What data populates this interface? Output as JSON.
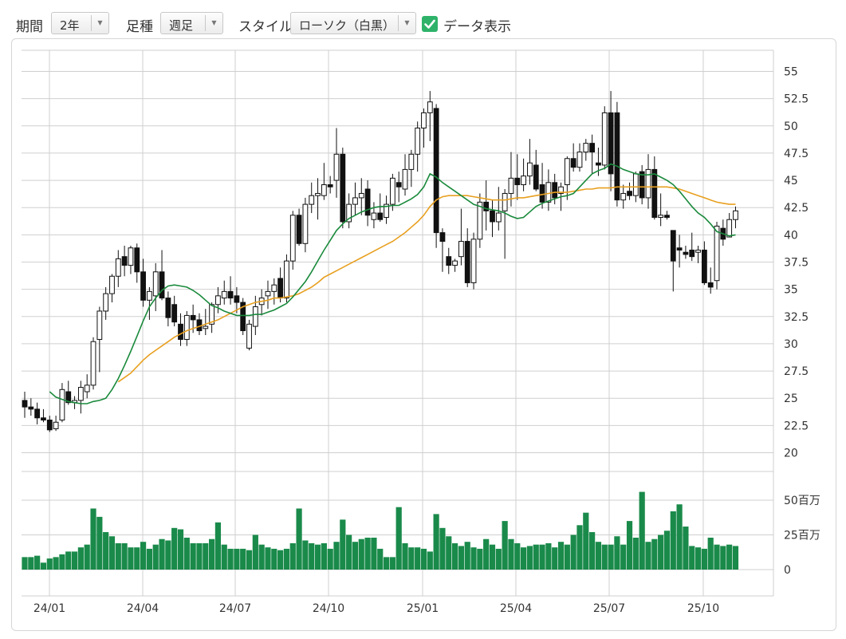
{
  "toolbar": {
    "period_label": "期間",
    "period_value": "2年",
    "interval_label": "足種",
    "interval_value": "週足",
    "style_label": "スタイル",
    "style_value": "ローソク（白黒）",
    "show_data_label": "データ表示",
    "show_data_checked": true
  },
  "chart_data": {
    "type": "candlestick",
    "price_axis": {
      "min": 20,
      "max": 55,
      "ticks": [
        "20",
        "22.5",
        "25",
        "27.5",
        "30",
        "32.5",
        "35",
        "37.5",
        "40",
        "42.5",
        "45",
        "47.5",
        "50",
        "52.5",
        "55"
      ]
    },
    "volume_axis": {
      "unit": "百万",
      "ticks": [
        "0",
        "25百万",
        "50百万"
      ]
    },
    "x_ticks": [
      "24/01",
      "24/04",
      "24/07",
      "24/10",
      "25/01",
      "25/04",
      "25/07",
      "25/10"
    ],
    "grid": true,
    "colors": {
      "up_body": "#ffffff",
      "down_body": "#111111",
      "ma_short": "#1a8a3c",
      "ma_long": "#e8a020",
      "volume": "#1a8a4a",
      "grid": "#cfcfcf"
    },
    "ohlc": [
      [
        24.8,
        25.6,
        23.2,
        24.2
      ],
      [
        24.2,
        25.0,
        23.4,
        24.0
      ],
      [
        24.0,
        24.6,
        22.6,
        23.2
      ],
      [
        23.2,
        24.0,
        22.8,
        23.0
      ],
      [
        23.0,
        23.4,
        21.9,
        22.1
      ],
      [
        22.2,
        23.4,
        22.0,
        22.8
      ],
      [
        23.0,
        26.4,
        22.8,
        25.8
      ],
      [
        25.6,
        26.6,
        24.4,
        24.6
      ],
      [
        24.6,
        25.2,
        24.0,
        24.8
      ],
      [
        24.8,
        26.6,
        23.6,
        26.0
      ],
      [
        25.6,
        27.2,
        25.0,
        26.2
      ],
      [
        26.2,
        30.6,
        25.8,
        30.2
      ],
      [
        30.4,
        33.4,
        27.4,
        33.0
      ],
      [
        33.0,
        35.2,
        32.2,
        34.6
      ],
      [
        34.6,
        36.4,
        33.8,
        36.2
      ],
      [
        36.2,
        38.6,
        35.2,
        37.8
      ],
      [
        38.0,
        39.0,
        36.2,
        37.2
      ],
      [
        37.2,
        39.0,
        36.4,
        38.8
      ],
      [
        38.8,
        39.2,
        35.6,
        36.6
      ],
      [
        36.6,
        37.8,
        33.4,
        34.0
      ],
      [
        34.0,
        35.2,
        32.2,
        34.8
      ],
      [
        34.4,
        37.4,
        33.0,
        36.6
      ],
      [
        36.6,
        38.6,
        34.0,
        34.2
      ],
      [
        34.2,
        34.8,
        31.6,
        32.4
      ],
      [
        33.6,
        34.4,
        31.6,
        32.0
      ],
      [
        31.8,
        32.8,
        29.8,
        30.4
      ],
      [
        30.4,
        33.0,
        29.8,
        32.6
      ],
      [
        32.6,
        33.6,
        31.0,
        32.2
      ],
      [
        32.2,
        32.8,
        30.8,
        31.2
      ],
      [
        31.4,
        33.2,
        30.8,
        31.6
      ],
      [
        31.8,
        33.8,
        31.0,
        33.6
      ],
      [
        33.6,
        35.2,
        32.8,
        34.4
      ],
      [
        34.2,
        35.8,
        33.6,
        34.8
      ],
      [
        34.8,
        36.2,
        33.6,
        34.2
      ],
      [
        34.4,
        35.2,
        32.8,
        33.8
      ],
      [
        33.8,
        34.2,
        30.8,
        31.2
      ],
      [
        29.6,
        32.2,
        29.4,
        31.8
      ],
      [
        31.6,
        34.4,
        30.8,
        33.4
      ],
      [
        33.6,
        35.0,
        32.6,
        34.2
      ],
      [
        34.4,
        35.8,
        33.2,
        34.8
      ],
      [
        34.8,
        36.0,
        33.6,
        35.4
      ],
      [
        36.0,
        37.0,
        33.8,
        34.2
      ],
      [
        34.2,
        38.2,
        33.8,
        37.6
      ],
      [
        37.6,
        42.2,
        36.8,
        41.8
      ],
      [
        41.8,
        42.4,
        39.0,
        39.2
      ],
      [
        39.2,
        43.4,
        38.4,
        42.8
      ],
      [
        42.8,
        44.8,
        42.0,
        43.6
      ],
      [
        43.6,
        45.2,
        41.4,
        43.8
      ],
      [
        43.6,
        46.6,
        43.2,
        44.6
      ],
      [
        44.6,
        45.4,
        43.8,
        44.4
      ],
      [
        45.0,
        49.8,
        43.4,
        47.4
      ],
      [
        47.4,
        48.0,
        40.6,
        41.2
      ],
      [
        41.2,
        43.8,
        40.6,
        42.8
      ],
      [
        42.8,
        44.8,
        41.8,
        43.4
      ],
      [
        43.4,
        45.2,
        41.8,
        43.8
      ],
      [
        44.2,
        45.0,
        40.8,
        41.8
      ],
      [
        41.4,
        43.0,
        40.6,
        42.0
      ],
      [
        42.0,
        43.8,
        41.2,
        41.4
      ],
      [
        41.6,
        43.6,
        41.0,
        42.8
      ],
      [
        42.8,
        45.6,
        42.2,
        45.2
      ],
      [
        44.8,
        45.8,
        43.0,
        44.4
      ],
      [
        44.2,
        47.4,
        43.6,
        46.0
      ],
      [
        46.0,
        47.8,
        44.4,
        47.4
      ],
      [
        47.4,
        50.4,
        45.8,
        49.8
      ],
      [
        49.8,
        51.6,
        48.0,
        51.2
      ],
      [
        51.2,
        53.2,
        48.6,
        52.2
      ],
      [
        51.6,
        52.0,
        38.8,
        40.2
      ],
      [
        40.2,
        40.6,
        36.6,
        39.4
      ],
      [
        38.0,
        38.8,
        36.4,
        37.2
      ],
      [
        37.2,
        37.8,
        36.6,
        37.6
      ],
      [
        38.0,
        42.4,
        37.2,
        39.4
      ],
      [
        39.4,
        40.6,
        35.2,
        35.6
      ],
      [
        35.6,
        40.2,
        35.0,
        39.6
      ],
      [
        39.6,
        43.8,
        38.8,
        43.0
      ],
      [
        43.0,
        45.0,
        40.4,
        42.2
      ],
      [
        42.2,
        43.2,
        39.8,
        41.2
      ],
      [
        41.2,
        44.4,
        40.4,
        42.0
      ],
      [
        42.2,
        44.2,
        37.8,
        43.8
      ],
      [
        43.8,
        47.6,
        42.6,
        45.2
      ],
      [
        45.2,
        47.4,
        43.2,
        44.6
      ],
      [
        44.6,
        47.0,
        44.0,
        45.4
      ],
      [
        45.4,
        48.8,
        44.6,
        46.6
      ],
      [
        46.4,
        47.8,
        44.0,
        44.2
      ],
      [
        44.6,
        46.6,
        42.4,
        43.0
      ],
      [
        43.0,
        46.0,
        42.2,
        44.8
      ],
      [
        44.8,
        45.6,
        42.8,
        43.4
      ],
      [
        43.8,
        44.8,
        42.2,
        44.4
      ],
      [
        44.6,
        47.2,
        43.2,
        47.0
      ],
      [
        47.0,
        48.4,
        45.8,
        46.2
      ],
      [
        46.2,
        48.4,
        45.8,
        47.6
      ],
      [
        47.6,
        48.8,
        46.8,
        48.4
      ],
      [
        48.4,
        49.2,
        45.6,
        47.6
      ],
      [
        46.6,
        48.0,
        45.4,
        46.4
      ],
      [
        46.4,
        51.8,
        46.0,
        51.2
      ],
      [
        51.2,
        53.2,
        44.0,
        45.6
      ],
      [
        51.2,
        52.2,
        42.6,
        43.2
      ],
      [
        43.2,
        44.6,
        42.4,
        43.8
      ],
      [
        44.0,
        44.8,
        43.2,
        43.6
      ],
      [
        43.6,
        45.8,
        43.0,
        45.6
      ],
      [
        45.8,
        46.4,
        42.8,
        43.4
      ],
      [
        43.4,
        47.4,
        42.4,
        46.0
      ],
      [
        46.0,
        47.2,
        41.4,
        41.6
      ],
      [
        41.6,
        43.8,
        40.8,
        41.8
      ],
      [
        41.8,
        42.2,
        41.4,
        41.6
      ],
      [
        40.4,
        40.4,
        34.8,
        37.6
      ],
      [
        38.8,
        40.0,
        37.0,
        38.6
      ],
      [
        38.4,
        39.0,
        37.8,
        38.2
      ],
      [
        38.6,
        40.2,
        37.6,
        38.0
      ],
      [
        38.4,
        39.0,
        37.4,
        38.6
      ],
      [
        38.6,
        39.4,
        35.4,
        35.6
      ],
      [
        35.6,
        37.0,
        34.6,
        35.2
      ],
      [
        35.8,
        41.2,
        35.0,
        40.8
      ],
      [
        40.6,
        41.4,
        39.0,
        39.6
      ],
      [
        39.8,
        42.0,
        39.8,
        41.4
      ],
      [
        41.4,
        42.6,
        40.6,
        42.2
      ]
    ],
    "ma_short": [
      null,
      null,
      null,
      null,
      25.6,
      25.1,
      24.9,
      24.7,
      24.6,
      24.5,
      24.5,
      24.7,
      24.8,
      25.0,
      25.8,
      26.8,
      28.0,
      29.3,
      30.7,
      32.1,
      33.4,
      34.2,
      34.9,
      35.3,
      35.4,
      35.3,
      35.2,
      34.9,
      34.5,
      34.0,
      33.5,
      33.3,
      33.0,
      32.8,
      32.6,
      32.6,
      32.6,
      32.7,
      32.7,
      32.9,
      33.1,
      33.4,
      33.7,
      34.3,
      35.0,
      35.7,
      36.6,
      37.6,
      38.6,
      39.5,
      40.4,
      41.0,
      41.5,
      41.8,
      42.1,
      42.3,
      42.5,
      42.6,
      42.6,
      42.7,
      42.7,
      43.0,
      43.3,
      43.7,
      44.4,
      45.6,
      45.3,
      44.8,
      44.4,
      44.0,
      43.6,
      43.2,
      42.8,
      42.6,
      42.4,
      42.3,
      42.2,
      42.0,
      41.7,
      41.5,
      41.6,
      42.1,
      42.6,
      42.9,
      43.1,
      43.3,
      43.5,
      43.6,
      43.8,
      44.4,
      45.0,
      45.6,
      45.9,
      46.1,
      46.5,
      46.3,
      46.0,
      45.8,
      45.6,
      45.5,
      45.5,
      45.6,
      45.3,
      45.0,
      44.6,
      44.0,
      43.3,
      42.6,
      42.0,
      41.6,
      41.0,
      40.3,
      40.1,
      39.9,
      40.0
    ],
    "ma_long": [
      null,
      null,
      null,
      null,
      null,
      null,
      null,
      null,
      null,
      null,
      null,
      null,
      null,
      null,
      null,
      26.5,
      26.9,
      27.3,
      27.9,
      28.5,
      29.0,
      29.4,
      29.8,
      30.2,
      30.6,
      30.9,
      31.2,
      31.4,
      31.6,
      31.8,
      32.0,
      32.2,
      32.5,
      32.8,
      33.1,
      33.4,
      33.6,
      33.8,
      33.9,
      34.0,
      34.2,
      34.2,
      34.3,
      34.4,
      34.6,
      34.9,
      35.2,
      35.6,
      36.1,
      36.4,
      36.7,
      37.0,
      37.3,
      37.6,
      37.9,
      38.2,
      38.5,
      38.8,
      39.1,
      39.4,
      39.8,
      40.2,
      40.7,
      41.2,
      41.8,
      42.6,
      43.2,
      43.5,
      43.6,
      43.6,
      43.6,
      43.6,
      43.5,
      43.4,
      43.3,
      43.2,
      43.2,
      43.2,
      43.3,
      43.4,
      43.4,
      43.5,
      43.6,
      43.7,
      43.8,
      43.9,
      43.9,
      43.9,
      44.0,
      44.1,
      44.2,
      44.2,
      44.3,
      44.3,
      44.3,
      44.4,
      44.4,
      44.4,
      44.4,
      44.4,
      44.4,
      44.4,
      44.4,
      44.4,
      44.3,
      44.2,
      44.0,
      43.8,
      43.6,
      43.4,
      43.2,
      43.0,
      42.9,
      42.8,
      42.8
    ],
    "volume": [
      9,
      9,
      10,
      5,
      8,
      9,
      11,
      13,
      13,
      16,
      18,
      44,
      38,
      27,
      24,
      19,
      19,
      16,
      16,
      20,
      15,
      18,
      22,
      21,
      30,
      29,
      23,
      19,
      19,
      19,
      22,
      34,
      18,
      15,
      15,
      15,
      14,
      25,
      18,
      16,
      15,
      14,
      15,
      19,
      44,
      21,
      19,
      18,
      19,
      15,
      20,
      36,
      25,
      20,
      22,
      23,
      23,
      15,
      9,
      9,
      45,
      19,
      16,
      16,
      15,
      13,
      40,
      30,
      24,
      19,
      17,
      20,
      16,
      15,
      22,
      18,
      15,
      35,
      22,
      19,
      16,
      17,
      18,
      18,
      19,
      16,
      20,
      18,
      25,
      32,
      41,
      27,
      20,
      18,
      18,
      24,
      18,
      35,
      23,
      56,
      20,
      22,
      25,
      28,
      42,
      47,
      31,
      17,
      16,
      15,
      23,
      18,
      17,
      18,
      17
    ]
  }
}
